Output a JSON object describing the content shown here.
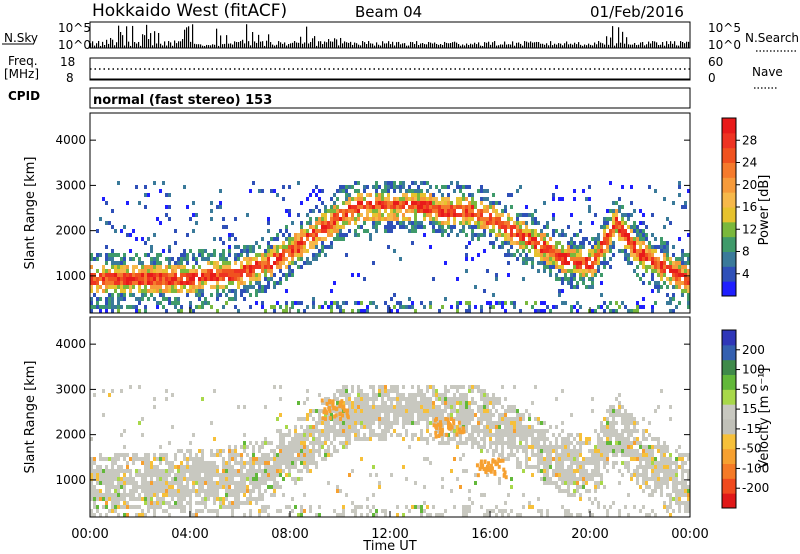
{
  "header": {
    "station": "Hokkaido West (fitACF)",
    "beam": "Beam 04",
    "date": "01/Feb/2016"
  },
  "strip": {
    "nsky_label": "N.Sky",
    "nsky_ticks": [
      "10^5",
      "10^0"
    ],
    "nsearch_label": "N.Search",
    "nsearch_ticks": [
      "10^5",
      "10^0"
    ],
    "freq_label": "Freq.",
    "freq_unit": "[MHz]",
    "freq_ticks": [
      "18",
      "8"
    ],
    "nave_label": "Nave",
    "nave_ticks": [
      "60",
      "0"
    ],
    "cpid_label": "CPID",
    "cpid_value": "normal (fast stereo) 153"
  },
  "axes": {
    "x_label": "Time UT",
    "x_ticks": [
      "00:00",
      "04:00",
      "08:00",
      "12:00",
      "16:00",
      "20:00",
      "00:00"
    ],
    "y_label": "Slant Range [km]",
    "y_ticks": [
      "1000",
      "2000",
      "3000",
      "4000"
    ]
  },
  "colorbars": {
    "power": {
      "label": "Power [dB]",
      "ticks": [
        "4",
        "8",
        "12",
        "16",
        "20",
        "24",
        "28"
      ],
      "colors": [
        "#1f1fff",
        "#2f50b8",
        "#3a7a9a",
        "#3f9a6a",
        "#7ab83c",
        "#e6c22e",
        "#f6b84a",
        "#f69a3a",
        "#f57a2c",
        "#f0521f",
        "#ee3322",
        "#e81a1a"
      ]
    },
    "velocity": {
      "label": "Velocity [m s⁻¹]",
      "ticks": [
        "200",
        "100",
        "50",
        "15",
        "-15",
        "-50",
        "-100",
        "-200"
      ],
      "colors": [
        "#2f36b8",
        "#3460b0",
        "#3f8a4a",
        "#62b83a",
        "#a8d84a",
        "#c8c8c0",
        "#c0c0b8",
        "#f6c03a",
        "#f6a030",
        "#f57a26",
        "#f04a1e",
        "#e01818"
      ]
    }
  },
  "chart_data": [
    {
      "type": "heatmap",
      "title": "Power [dB]",
      "xlabel": "Time UT",
      "ylabel": "Slant Range [km]",
      "xlim": [
        0,
        24
      ],
      "ylim": [
        180,
        4600
      ],
      "zlim": [
        0,
        30
      ],
      "ridge_range_km": [
        [
          0,
          950
        ],
        [
          2,
          950
        ],
        [
          4,
          1000
        ],
        [
          6,
          1100
        ],
        [
          7,
          1300
        ],
        [
          8,
          1600
        ],
        [
          9,
          2000
        ],
        [
          10,
          2400
        ],
        [
          11,
          2600
        ],
        [
          12,
          2600
        ],
        [
          13,
          2600
        ],
        [
          14,
          2500
        ],
        [
          15,
          2500
        ],
        [
          16,
          2300
        ],
        [
          17,
          2000
        ],
        [
          18,
          1700
        ],
        [
          19,
          1400
        ],
        [
          20,
          1300
        ],
        [
          21,
          2200
        ],
        [
          22,
          1500
        ],
        [
          23,
          1200
        ],
        [
          24,
          900
        ]
      ],
      "note_hours": "x values are hours UT from 00:00 on 01/Feb/2016"
    },
    {
      "type": "heatmap",
      "title": "Velocity [m s⁻¹]",
      "xlabel": "Time UT",
      "ylabel": "Slant Range [km]",
      "xlim": [
        0,
        24
      ],
      "ylim": [
        180,
        4600
      ],
      "zlim": [
        -200,
        200
      ],
      "dominant_class": "-15 to 15 (grey)",
      "notable_features": [
        {
          "time_h": 14.3,
          "range_km": 2200,
          "velocity": -50
        },
        {
          "time_h": 9.8,
          "range_km": 2600,
          "velocity": -50
        },
        {
          "time_h": 16.0,
          "range_km": 1300,
          "velocity": -50
        }
      ]
    }
  ]
}
